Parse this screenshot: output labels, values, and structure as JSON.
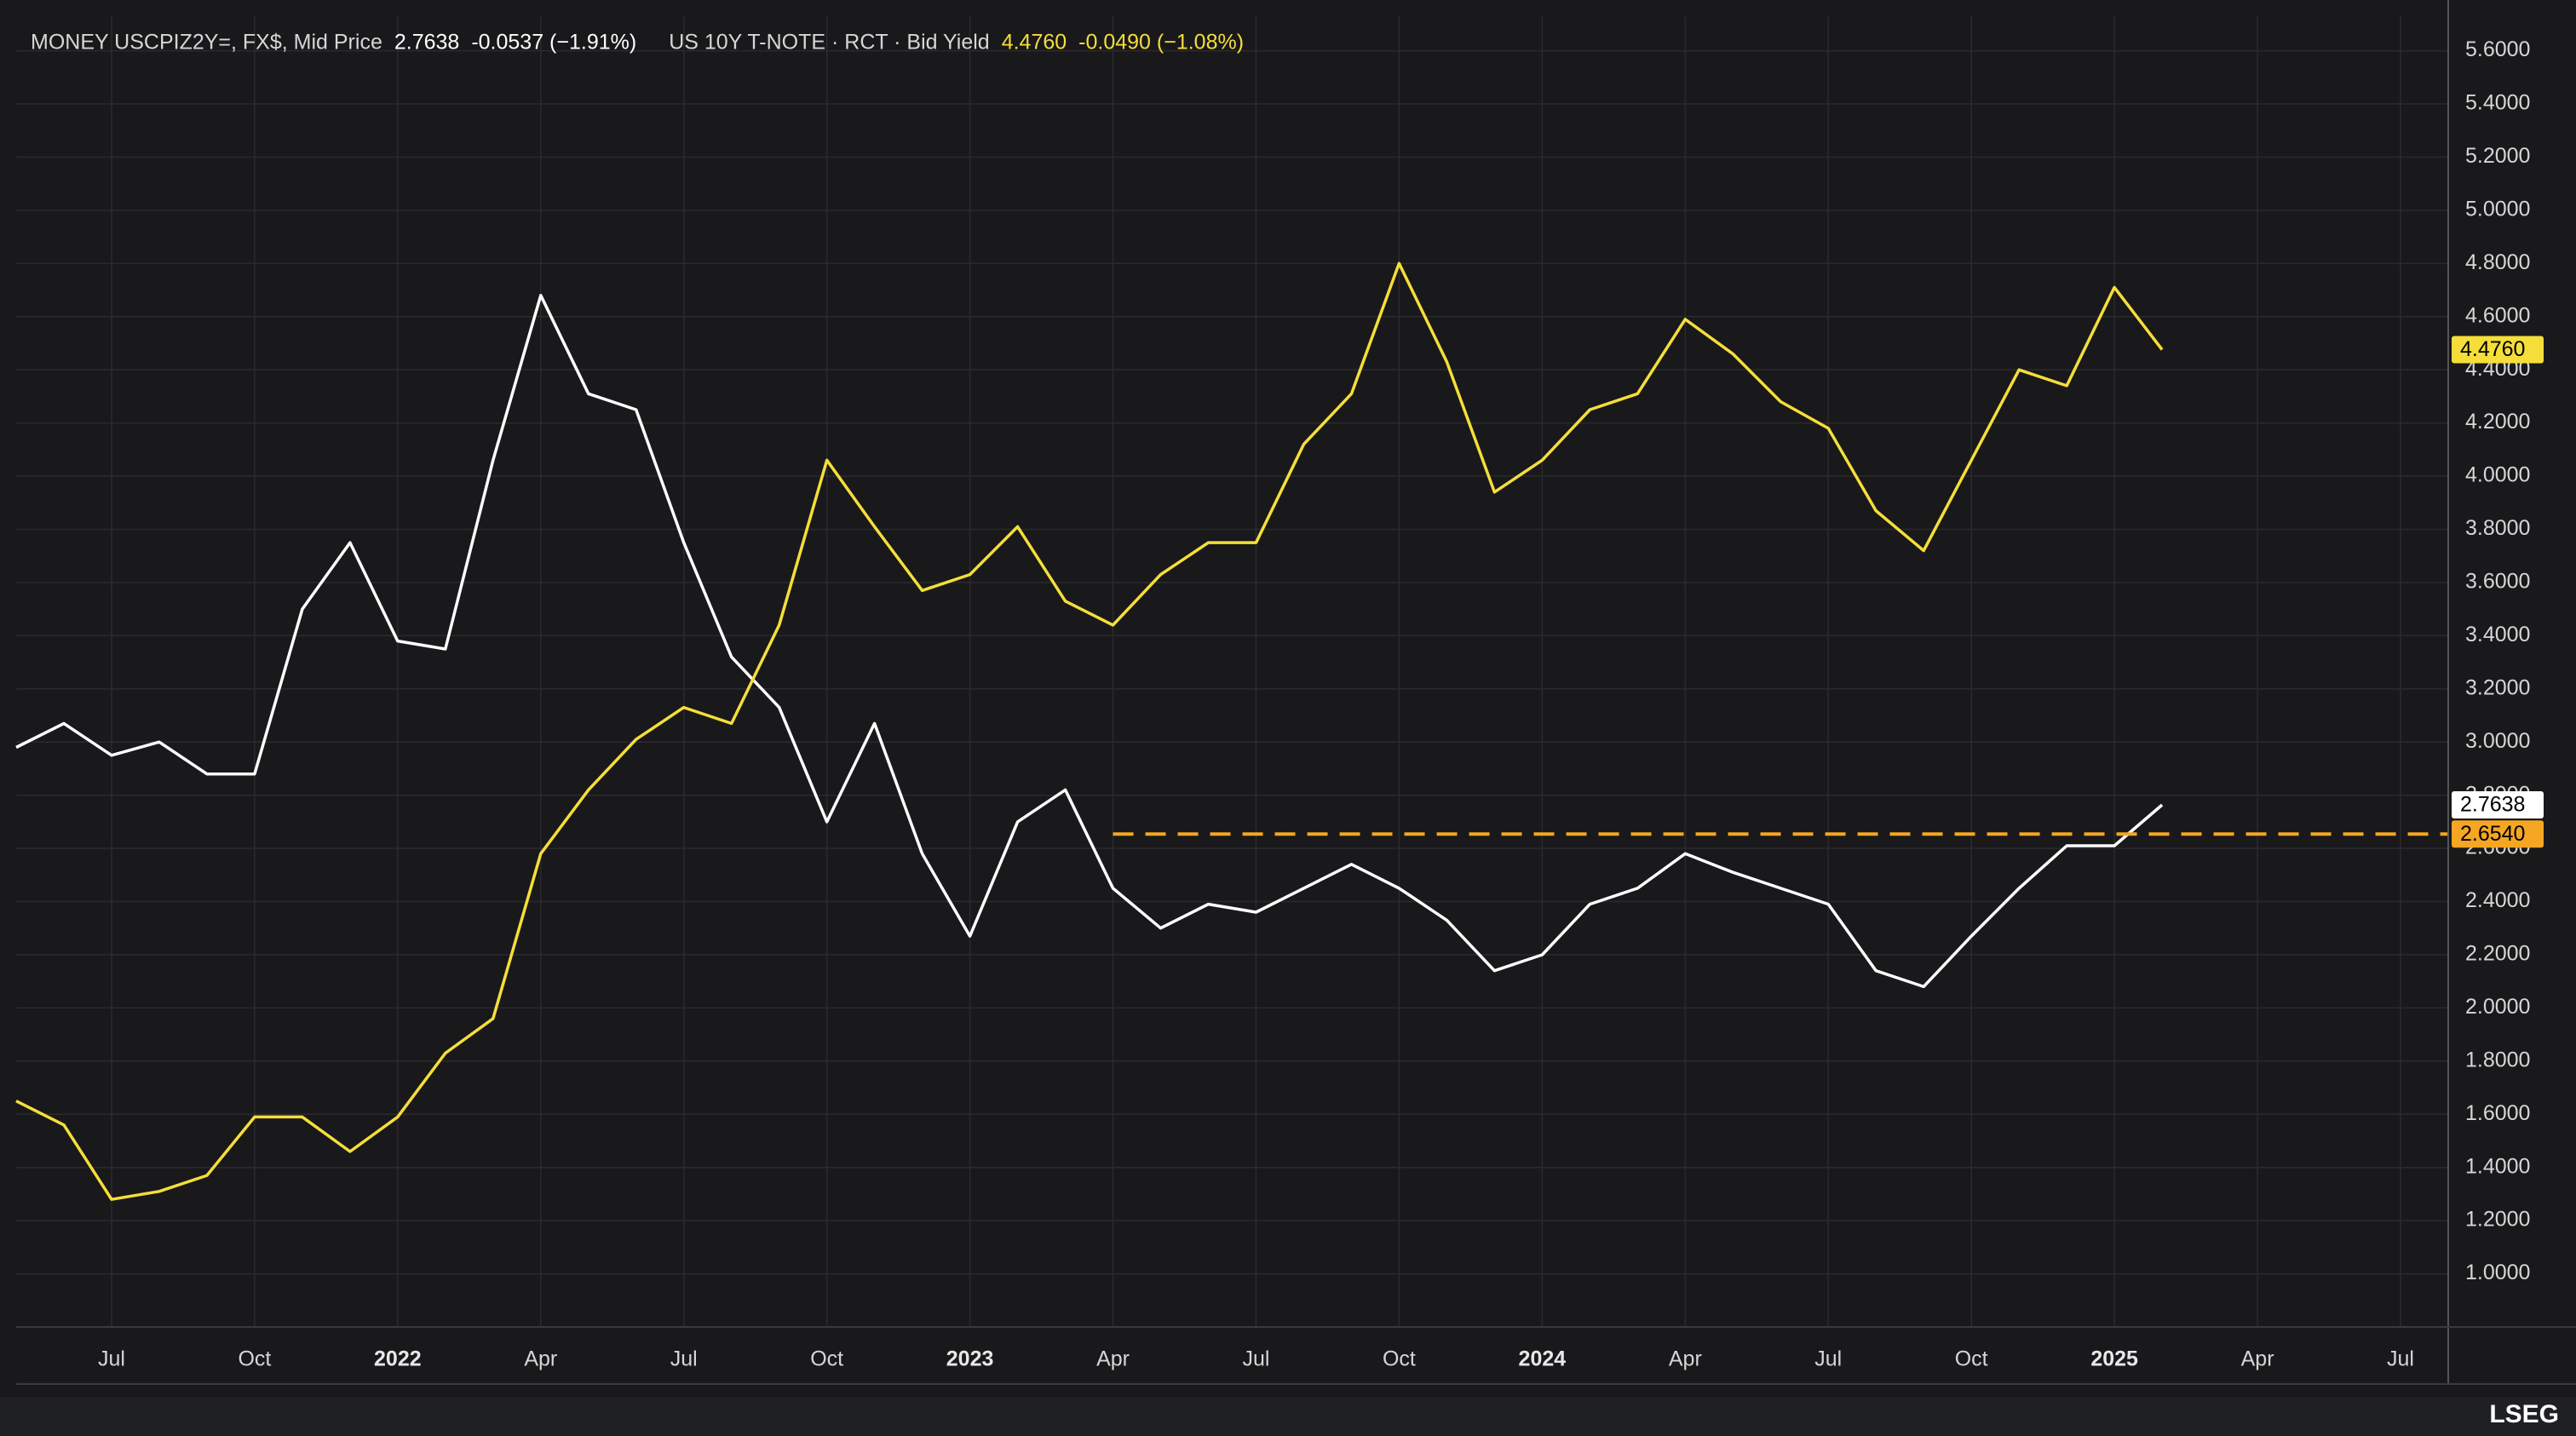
{
  "chart_data": {
    "type": "line",
    "xlim": [
      "2021-05",
      "2025-08"
    ],
    "xticks": [
      {
        "value": "2021-07",
        "label": "Jul"
      },
      {
        "value": "2021-10",
        "label": "Oct"
      },
      {
        "value": "2022-01",
        "label": "2022"
      },
      {
        "value": "2022-04",
        "label": "Apr"
      },
      {
        "value": "2022-07",
        "label": "Jul"
      },
      {
        "value": "2022-10",
        "label": "Oct"
      },
      {
        "value": "2023-01",
        "label": "2023"
      },
      {
        "value": "2023-04",
        "label": "Apr"
      },
      {
        "value": "2023-07",
        "label": "Jul"
      },
      {
        "value": "2023-10",
        "label": "Oct"
      },
      {
        "value": "2024-01",
        "label": "2024"
      },
      {
        "value": "2024-04",
        "label": "Apr"
      },
      {
        "value": "2024-07",
        "label": "Jul"
      },
      {
        "value": "2024-10",
        "label": "Oct"
      },
      {
        "value": "2025-01",
        "label": "2025"
      },
      {
        "value": "2025-04",
        "label": "Apr"
      },
      {
        "value": "2025-07",
        "label": "Jul"
      }
    ],
    "ylim": [
      0.8,
      5.73
    ],
    "yticks": [
      {
        "value": 1.0,
        "label": "1.0000"
      },
      {
        "value": 1.2,
        "label": "1.2000"
      },
      {
        "value": 1.4,
        "label": "1.4000"
      },
      {
        "value": 1.6,
        "label": "1.6000"
      },
      {
        "value": 1.8,
        "label": "1.8000"
      },
      {
        "value": 2.0,
        "label": "2.0000"
      },
      {
        "value": 2.2,
        "label": "2.2000"
      },
      {
        "value": 2.4,
        "label": "2.4000"
      },
      {
        "value": 2.6,
        "label": "2.6000"
      },
      {
        "value": 2.8,
        "label": "2.8000"
      },
      {
        "value": 3.0,
        "label": "3.0000"
      },
      {
        "value": 3.2,
        "label": "3.2000"
      },
      {
        "value": 3.4,
        "label": "3.4000"
      },
      {
        "value": 3.6,
        "label": "3.6000"
      },
      {
        "value": 3.8,
        "label": "3.8000"
      },
      {
        "value": 4.0,
        "label": "4.0000"
      },
      {
        "value": 4.2,
        "label": "4.2000"
      },
      {
        "value": 4.4,
        "label": "4.4000"
      },
      {
        "value": 4.6,
        "label": "4.6000"
      },
      {
        "value": 4.8,
        "label": "4.8000"
      },
      {
        "value": 5.0,
        "label": "5.0000"
      },
      {
        "value": 5.2,
        "label": "5.2000"
      },
      {
        "value": 5.4,
        "label": "5.4000"
      },
      {
        "value": 5.6,
        "label": "5.6000"
      }
    ],
    "grid": true,
    "x": [
      "2021-05",
      "2021-06",
      "2021-07",
      "2021-08",
      "2021-09",
      "2021-10",
      "2021-11",
      "2021-12",
      "2022-01",
      "2022-02",
      "2022-03",
      "2022-04",
      "2022-05",
      "2022-06",
      "2022-07",
      "2022-08",
      "2022-09",
      "2022-10",
      "2022-11",
      "2022-12",
      "2023-01",
      "2023-02",
      "2023-03",
      "2023-04",
      "2023-05",
      "2023-06",
      "2023-07",
      "2023-08",
      "2023-09",
      "2023-10",
      "2023-11",
      "2023-12",
      "2024-01",
      "2024-02",
      "2024-03",
      "2024-04",
      "2024-05",
      "2024-06",
      "2024-07",
      "2024-08",
      "2024-09",
      "2024-10",
      "2024-11",
      "2024-12",
      "2025-01",
      "2025-02"
    ],
    "series": [
      {
        "name": "MONEY USCPIZ2Y=, FX$, Mid Price",
        "color": "#ffffff",
        "label_color": "#000000",
        "last": 2.7638,
        "change": "-0.0537 (−1.91%)",
        "values": [
          2.98,
          3.07,
          2.95,
          3.0,
          2.88,
          2.88,
          3.5,
          3.75,
          3.38,
          3.35,
          4.06,
          4.68,
          4.31,
          4.25,
          3.75,
          3.32,
          3.13,
          2.7,
          3.07,
          2.58,
          2.27,
          2.7,
          2.82,
          2.45,
          2.3,
          2.39,
          2.36,
          2.45,
          2.54,
          2.45,
          2.33,
          2.14,
          2.2,
          2.39,
          2.45,
          2.58,
          2.51,
          2.45,
          2.39,
          2.14,
          2.08,
          2.27,
          2.45,
          2.61,
          2.61,
          2.7638
        ]
      },
      {
        "name": "US 10Y T-NOTE · RCT · Bid Yield",
        "color": "#f5de3a",
        "label_color": "#000000",
        "last": {
          "value": 4.476,
          "label": "4.4760"
        },
        "change": "-0.0490 (−1.08%)",
        "values": [
          1.65,
          1.56,
          1.28,
          1.31,
          1.37,
          1.59,
          1.59,
          1.46,
          1.59,
          1.83,
          1.96,
          2.58,
          2.82,
          3.01,
          3.13,
          3.07,
          3.44,
          4.06,
          3.81,
          3.57,
          3.63,
          3.81,
          3.53,
          3.44,
          3.63,
          3.75,
          3.75,
          4.12,
          4.31,
          4.8,
          4.43,
          3.94,
          4.06,
          4.25,
          4.31,
          4.59,
          4.46,
          4.28,
          4.18,
          3.87,
          3.72,
          4.06,
          4.4,
          4.34,
          4.71,
          4.476
        ]
      }
    ],
    "hline": {
      "value": 2.654,
      "label": "2.6540",
      "from": "2023-04",
      "color": "#f5a623"
    },
    "brand": "LSEG"
  }
}
